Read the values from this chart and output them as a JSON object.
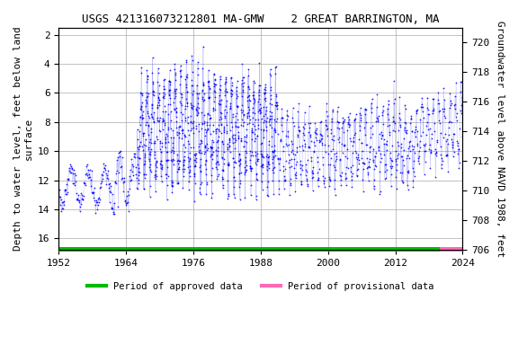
{
  "title": "USGS 421316073212801 MA-GMW    2 GREAT BARRINGTON, MA",
  "ylabel_left": "Depth to water level, feet below land\nsurface",
  "ylabel_right": "Groundwater level above NAVD 1988, feet",
  "xlim": [
    1952,
    2024
  ],
  "ylim_left": [
    16.8,
    1.5
  ],
  "ylim_right": [
    706,
    721
  ],
  "xticks": [
    1952,
    1964,
    1976,
    1988,
    2000,
    2012,
    2024
  ],
  "yticks_left": [
    2,
    4,
    6,
    8,
    10,
    12,
    14,
    16
  ],
  "yticks_right": [
    706,
    708,
    710,
    712,
    714,
    716,
    718,
    720
  ],
  "data_color": "#0000FF",
  "approved_color": "#00BB00",
  "provisional_color": "#FF69B4",
  "background_color": "#FFFFFF",
  "title_fontsize": 9,
  "axis_fontsize": 8,
  "tick_fontsize": 8,
  "font_family": "monospace",
  "approved_bar_start": 1952,
  "approved_bar_end": 2020,
  "provisional_bar_start": 2020,
  "provisional_bar_end": 2024,
  "approved_label": "Period of approved data",
  "provisional_label": "Period of provisional data"
}
